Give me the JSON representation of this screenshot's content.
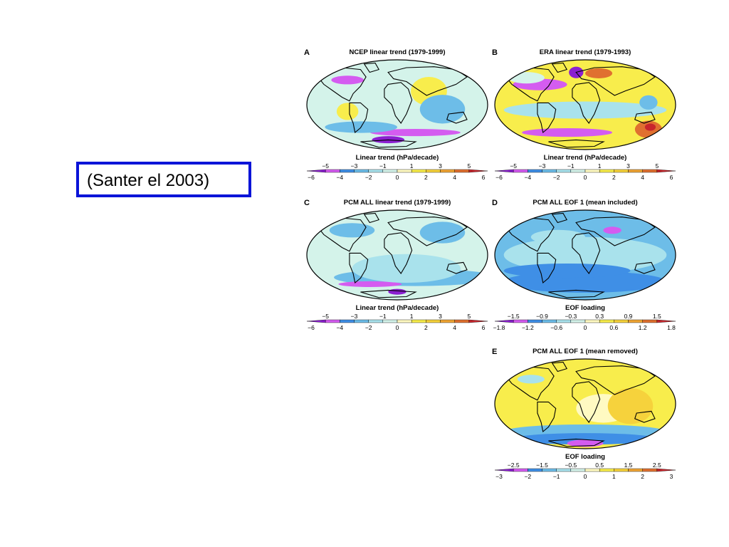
{
  "caption": "(Santer el 2003)",
  "colors": {
    "border_blue": "#0a14d8",
    "scale": [
      "#8b1fd0",
      "#d45cf0",
      "#3f8fe6",
      "#6dbde8",
      "#a9e2ec",
      "#d4f3ea",
      "#fffac2",
      "#f8ed4c",
      "#f6d23c",
      "#f0a535",
      "#e07030",
      "#c8262c"
    ]
  },
  "panels": [
    {
      "label": "A",
      "title": "NCEP linear trend (1979-1999)",
      "colorbar_title": "Linear trend (hPa/decade)",
      "ticks_upper": [
        "−5",
        "−3",
        "−1",
        "1",
        "3",
        "5"
      ],
      "ticks_lower": [
        "−6",
        "−4",
        "−2",
        "0",
        "2",
        "4",
        "6"
      ]
    },
    {
      "label": "B",
      "title": "ERA linear trend (1979-1993)",
      "colorbar_title": "Linear trend (hPa/decade)",
      "ticks_upper": [
        "−5",
        "−3",
        "−1",
        "1",
        "3",
        "5"
      ],
      "ticks_lower": [
        "−6",
        "−4",
        "−2",
        "0",
        "2",
        "4",
        "6"
      ]
    },
    {
      "label": "C",
      "title": "PCM ALL linear trend (1979-1999)",
      "colorbar_title": "Linear trend (hPa/decade)",
      "ticks_upper": [
        "−5",
        "−3",
        "−1",
        "1",
        "3",
        "5"
      ],
      "ticks_lower": [
        "−6",
        "−4",
        "−2",
        "0",
        "2",
        "4",
        "6"
      ]
    },
    {
      "label": "D",
      "title": "PCM ALL EOF 1 (mean included)",
      "colorbar_title": "EOF loading",
      "ticks_upper": [
        "−1.5",
        "−0.9",
        "−0.3",
        "0.3",
        "0.9",
        "1.5"
      ],
      "ticks_lower": [
        "−1.8",
        "−1.2",
        "−0.6",
        "0",
        "0.6",
        "1.2",
        "1.8"
      ]
    },
    {
      "label": "E",
      "title": "PCM ALL EOF 1 (mean removed)",
      "colorbar_title": "EOF loading",
      "ticks_upper": [
        "−2.5",
        "−1.5",
        "−0.5",
        "0.5",
        "1.5",
        "2.5"
      ],
      "ticks_lower": [
        "−3",
        "−2",
        "−1",
        "0",
        "1",
        "2",
        "3"
      ]
    }
  ]
}
